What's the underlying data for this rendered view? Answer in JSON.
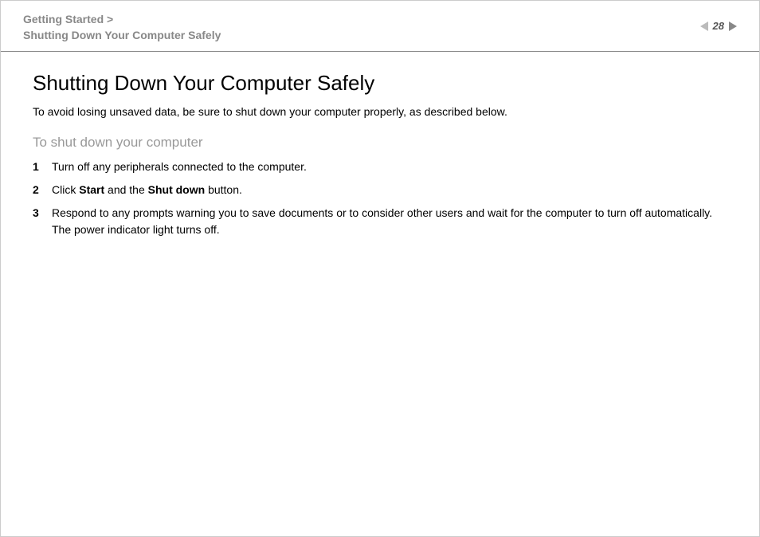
{
  "header": {
    "breadcrumb_line1": "Getting Started >",
    "breadcrumb_line2": "Shutting Down Your Computer Safely",
    "page_number": "28"
  },
  "content": {
    "title": "Shutting Down Your Computer Safely",
    "intro": "To avoid losing unsaved data, be sure to shut down your computer properly, as described below.",
    "section_heading": "To shut down your computer",
    "steps": [
      {
        "num": "1",
        "text_plain": "Turn off any peripherals connected to the computer."
      },
      {
        "num": "2",
        "text_prefix": "Click ",
        "bold1": "Start",
        "mid": " and the ",
        "bold2": "Shut down",
        "suffix": " button."
      },
      {
        "num": "3",
        "text_plain": "Respond to any prompts warning you to save documents or to consider other users and wait for the computer to turn off automatically.",
        "extra_line": "The power indicator light turns off."
      }
    ]
  },
  "styling": {
    "background_color": "#ffffff",
    "text_color": "#000000",
    "breadcrumb_color": "#888888",
    "section_heading_color": "#999999",
    "nav_arrow_left_color": "#bbbbbb",
    "nav_arrow_right_color": "#888888",
    "divider_color": "#888888",
    "title_fontsize": 26,
    "body_fontsize": 14,
    "section_heading_fontsize": 17
  }
}
